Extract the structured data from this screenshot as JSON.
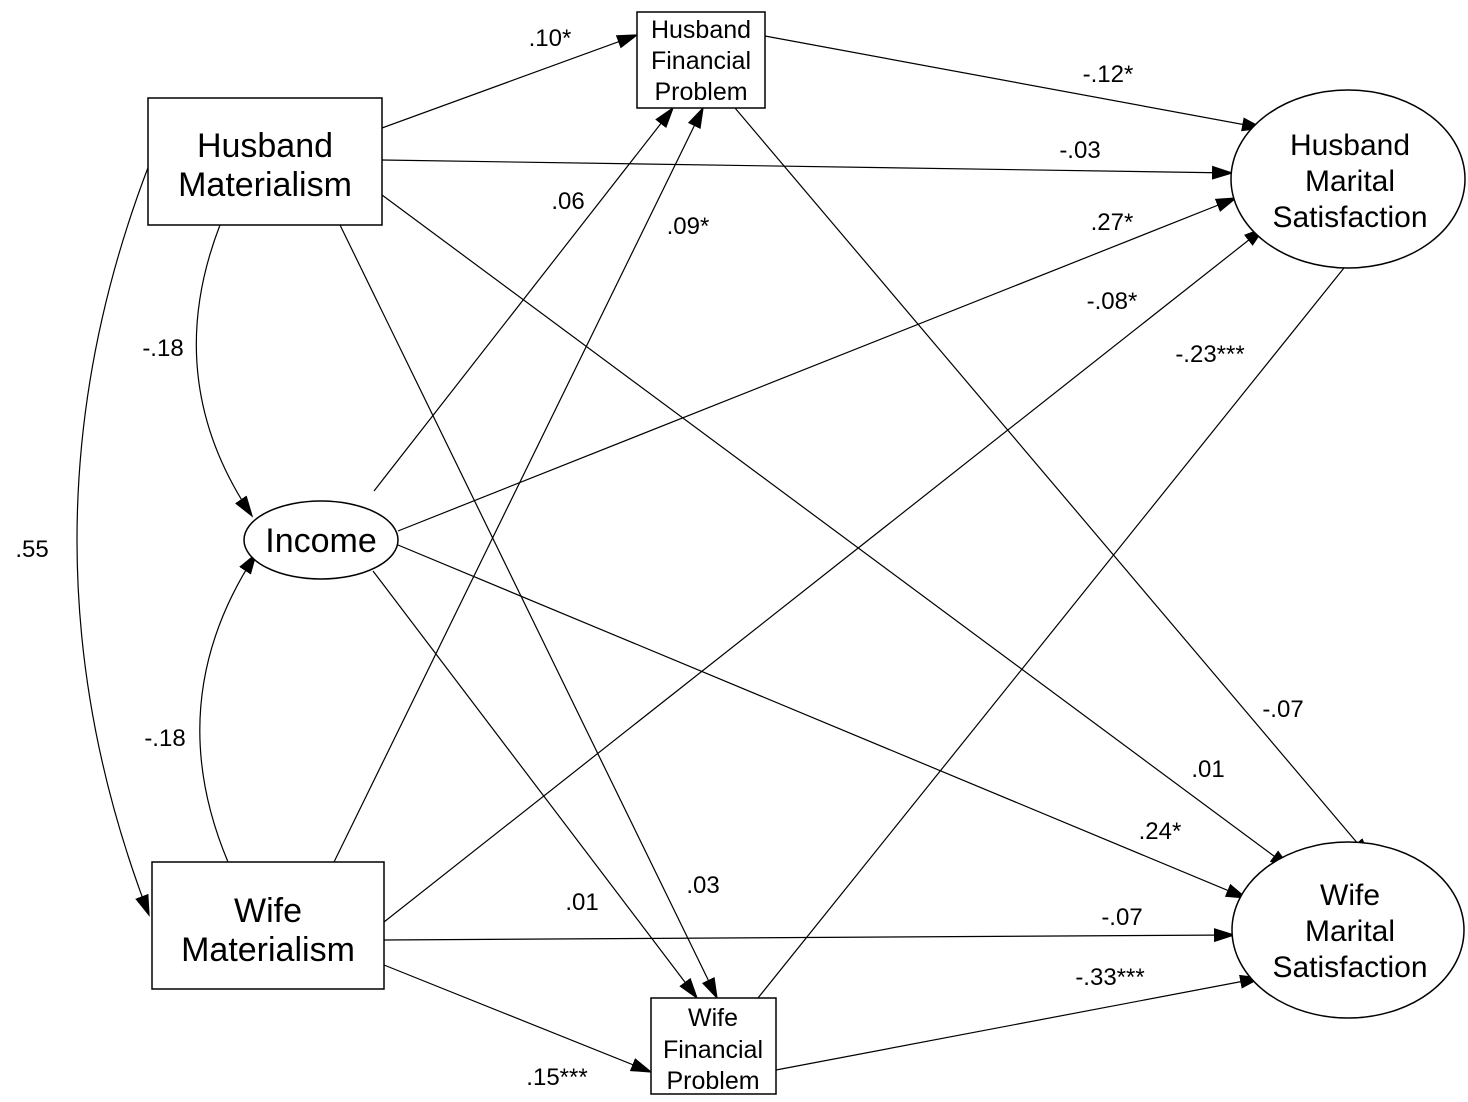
{
  "nodes": {
    "husband_materialism": {
      "lines": [
        "Husband",
        "Materialism"
      ]
    },
    "wife_materialism": {
      "lines": [
        "Wife",
        "Materialism"
      ]
    },
    "income": {
      "lines": [
        "Income"
      ]
    },
    "husband_financial_problem": {
      "lines": [
        "Husband",
        "Financial",
        "Problem"
      ]
    },
    "wife_financial_problem": {
      "lines": [
        "Wife",
        "Financial",
        "Problem"
      ]
    },
    "husband_marital_satisfaction": {
      "lines": [
        "Husband",
        "Marital",
        "Satisfaction"
      ]
    },
    "wife_marital_satisfaction": {
      "lines": [
        "Wife",
        "Marital",
        "Satisfaction"
      ]
    }
  },
  "paths": [
    {
      "id": "hm-hfp",
      "from": "Husband Materialism",
      "to": "Husband Financial Problem",
      "coefficient": ".10*"
    },
    {
      "id": "hfp-hms",
      "from": "Husband Financial Problem",
      "to": "Husband Marital Satisfaction",
      "coefficient": "-.12*"
    },
    {
      "id": "hm-hms",
      "from": "Husband Materialism",
      "to": "Husband Marital Satisfaction",
      "coefficient": "-.03"
    },
    {
      "id": "inc-hfp",
      "from": "Income",
      "to": "Husband Financial Problem",
      "coefficient": ".06"
    },
    {
      "id": "wm-hfp",
      "from": "Wife Materialism",
      "to": "Husband Financial Problem",
      "coefficient": ".09*"
    },
    {
      "id": "inc-hms",
      "from": "Income",
      "to": "Husband Marital Satisfaction",
      "coefficient": ".27*"
    },
    {
      "id": "wm-hms",
      "from": "Wife Materialism",
      "to": "Husband Marital Satisfaction",
      "coefficient": "-.08*"
    },
    {
      "id": "wfp-hms",
      "from": "Wife Financial Problem",
      "to": "Husband Marital Satisfaction",
      "coefficient": "-.23***"
    },
    {
      "id": "hm-inc",
      "from": "Husband Materialism",
      "to": "Income",
      "coefficient": "-.18",
      "type": "correlation"
    },
    {
      "id": "hm-wm",
      "from": "Husband Materialism",
      "to": "Wife Materialism",
      "coefficient": ".55",
      "type": "correlation"
    },
    {
      "id": "wm-inc",
      "from": "Wife Materialism",
      "to": "Income",
      "coefficient": "-.18",
      "type": "correlation"
    },
    {
      "id": "hfp-wms",
      "from": "Husband Financial Problem",
      "to": "Wife Marital Satisfaction",
      "coefficient": "-.07"
    },
    {
      "id": "hm-wms",
      "from": "Husband Materialism",
      "to": "Wife Marital Satisfaction",
      "coefficient": ".01"
    },
    {
      "id": "inc-wms",
      "from": "Income",
      "to": "Wife Marital Satisfaction",
      "coefficient": ".24*"
    },
    {
      "id": "inc-wfp",
      "from": "Income",
      "to": "Wife Financial Problem",
      "coefficient": ".01"
    },
    {
      "id": "hm-wfp",
      "from": "Husband Materialism",
      "to": "Wife Financial Problem",
      "coefficient": ".03"
    },
    {
      "id": "wm-wms",
      "from": "Wife Materialism",
      "to": "Wife Marital Satisfaction",
      "coefficient": "-.07"
    },
    {
      "id": "wfp-wms",
      "from": "Wife Financial Problem",
      "to": "Wife Marital Satisfaction",
      "coefficient": "-.33***"
    },
    {
      "id": "wm-wfp",
      "from": "Wife Materialism",
      "to": "Wife Financial Problem",
      "coefficient": ".15***"
    }
  ]
}
